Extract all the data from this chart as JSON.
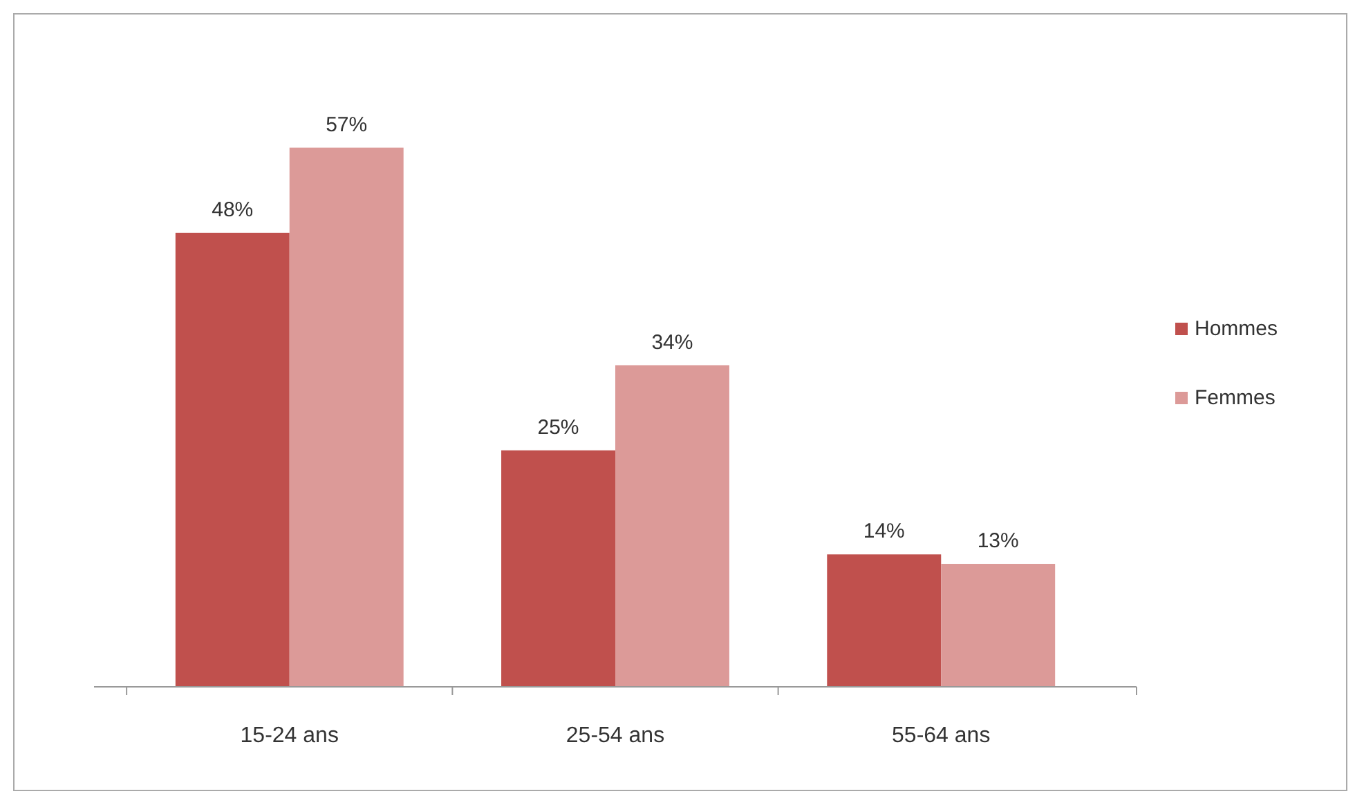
{
  "chart_data": {
    "type": "bar",
    "categories": [
      "15-24 ans",
      "25-54 ans",
      "55-64 ans"
    ],
    "series": [
      {
        "name": "Hommes",
        "color": "#c0504d",
        "values": [
          48,
          25,
          14
        ],
        "value_labels": [
          "48%",
          "25%",
          "14%"
        ]
      },
      {
        "name": "Femmes",
        "color": "#dc9a98",
        "values": [
          57,
          34,
          13
        ],
        "value_labels": [
          "57%",
          "34%",
          "13%"
        ]
      }
    ],
    "legend": "right"
  }
}
